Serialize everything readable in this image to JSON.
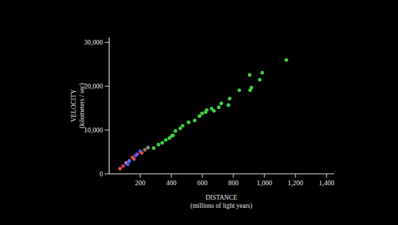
{
  "chart_data": {
    "type": "scatter",
    "xlabel": "DISTANCE\n(millions of light years)",
    "ylabel": "VELOCITY\n(kilometers / sec)",
    "x": [
      70,
      90,
      110,
      120,
      130,
      150,
      160,
      170,
      180,
      200,
      210,
      230,
      250,
      287,
      318,
      342,
      365,
      388,
      404,
      411,
      427,
      458,
      473,
      512,
      551,
      582,
      598,
      621,
      629,
      660,
      675,
      706,
      722,
      768,
      776,
      838,
      908,
      916,
      905,
      970,
      986,
      1141
    ],
    "values": [
      1200,
      1800,
      2500,
      2200,
      3000,
      3800,
      3400,
      4200,
      4500,
      5200,
      4800,
      5500,
      6000,
      5900,
      6700,
      7100,
      7750,
      8200,
      8700,
      8800,
      9800,
      10400,
      11000,
      11800,
      12200,
      13200,
      13800,
      14100,
      14600,
      14900,
      14400,
      15200,
      16100,
      15700,
      17200,
      19100,
      19100,
      19700,
      22600,
      21500,
      23100,
      26000
    ],
    "colors": [
      "#e05050",
      "#c04080",
      "#e080a0",
      "#4060e0",
      "#5070ff",
      "#e04040",
      "#d05060",
      "#4050e0",
      "#9050c0",
      "#4060f0",
      "#e04848",
      "#a07050",
      "#909090",
      "#40d040",
      "#40d040",
      "#40d040",
      "#40d040",
      "#40d040",
      "#40d040",
      "#40d040",
      "#40d040",
      "#40d040",
      "#40d040",
      "#40d040",
      "#40d040",
      "#40d040",
      "#40d040",
      "#40d040",
      "#40d040",
      "#40d040",
      "#40d040",
      "#40d040",
      "#40d040",
      "#40d040",
      "#40d040",
      "#40d040",
      "#40d040",
      "#40d040",
      "#40d040",
      "#40d040",
      "#40d040",
      "#40d040"
    ],
    "marker": "circle",
    "xlim": [
      0,
      1450
    ],
    "ylim": [
      0,
      31000
    ],
    "xticks": [
      200,
      400,
      600,
      800,
      {
        "value": 1000,
        "label": "1,000"
      },
      {
        "value": 1200,
        "label": "1,200"
      },
      {
        "value": 1400,
        "label": "1,400"
      }
    ],
    "yticks": [
      0,
      {
        "value": 10000,
        "label": "10,000"
      },
      {
        "value": 20000,
        "label": "20,000"
      },
      {
        "value": 30000,
        "label": "30,000"
      }
    ],
    "grid": false
  }
}
